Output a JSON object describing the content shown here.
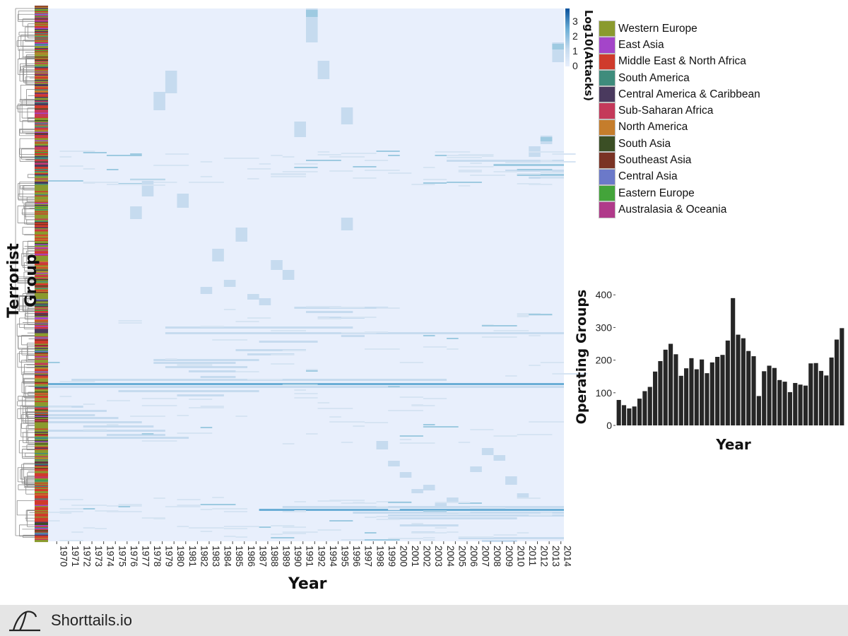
{
  "chart_data": [
    {
      "type": "heatmap",
      "title": "",
      "xlabel": "Year",
      "ylabel": "Terrorist Group",
      "x_categories": [
        "1970",
        "1971",
        "1972",
        "1973",
        "1974",
        "1975",
        "1976",
        "1977",
        "1978",
        "1979",
        "1980",
        "1981",
        "1982",
        "1983",
        "1984",
        "1985",
        "1986",
        "1987",
        "1988",
        "1989",
        "1990",
        "1991",
        "1992",
        "1994",
        "1995",
        "1996",
        "1997",
        "1998",
        "1999",
        "2000",
        "2001",
        "2002",
        "2003",
        "2004",
        "2005",
        "2006",
        "2007",
        "2008",
        "2009",
        "2010",
        "2011",
        "2012",
        "2013",
        "2014"
      ],
      "colorbar": {
        "label": "Log10(Attacks)",
        "ticks": [
          "3",
          "2",
          "1",
          "0"
        ],
        "range": [
          0,
          3.5
        ],
        "colors": [
          "#e8effc",
          "#c6dbef",
          "#6baed6",
          "#08519c"
        ]
      },
      "row_annotation": "world region of each group (colour strip)",
      "dendrogram": "rows hierarchically clustered"
    },
    {
      "type": "bar",
      "title": "",
      "xlabel": "Year",
      "ylabel": "Operating Groups",
      "yticks": [
        "0",
        "100",
        "200",
        "300",
        "400"
      ],
      "ylim": [
        0,
        420
      ],
      "values": [
        78,
        62,
        52,
        58,
        82,
        105,
        118,
        165,
        197,
        232,
        250,
        218,
        152,
        175,
        206,
        172,
        202,
        160,
        193,
        210,
        216,
        260,
        390,
        278,
        267,
        228,
        212,
        90,
        166,
        183,
        176,
        139,
        134,
        102,
        130,
        125,
        122,
        190,
        191,
        167,
        153,
        208,
        263,
        298
      ],
      "bar_color": "#262626"
    }
  ],
  "legend": {
    "items": [
      {
        "label": "Western Europe",
        "color": "#8a9a2e"
      },
      {
        "label": "East Asia",
        "color": "#a445c9"
      },
      {
        "label": "Middle East & North Africa",
        "color": "#cf3b2c"
      },
      {
        "label": "South America",
        "color": "#3f8c7c"
      },
      {
        "label": "Central America & Caribbean",
        "color": "#4a3a5e"
      },
      {
        "label": "Sub-Saharan Africa",
        "color": "#c4395a"
      },
      {
        "label": "North America",
        "color": "#c57d2c"
      },
      {
        "label": "South Asia",
        "color": "#3b4f25"
      },
      {
        "label": "Southeast Asia",
        "color": "#7a3324"
      },
      {
        "label": "Central Asia",
        "color": "#6b79c9"
      },
      {
        "label": "Eastern Europe",
        "color": "#43a43a"
      },
      {
        "label": "Australasia & Oceania",
        "color": "#b03a8a"
      }
    ]
  },
  "footer": {
    "brand": "Shorttails.io"
  }
}
